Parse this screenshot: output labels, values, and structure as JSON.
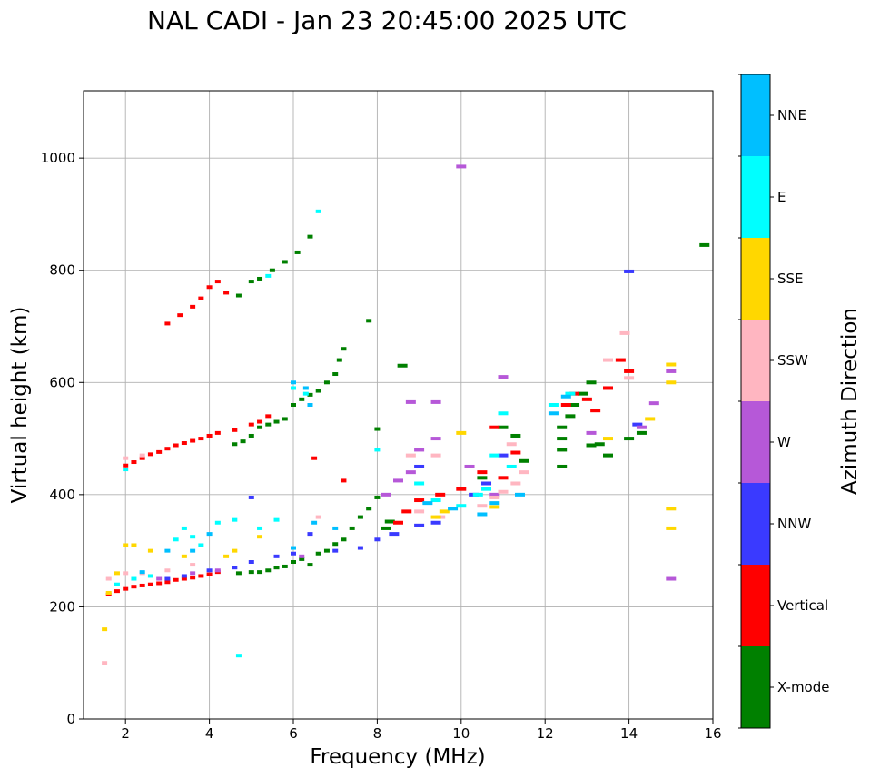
{
  "chart_data": {
    "type": "scatter",
    "title": "NAL CADI - Jan 23 20:45:00 2025 UTC",
    "xlabel": "Frequency (MHz)",
    "ylabel": "Virtual height (km)",
    "xlim": [
      1,
      16
    ],
    "ylim": [
      0,
      1120
    ],
    "xticks": [
      2,
      4,
      6,
      8,
      10,
      12,
      14,
      16
    ],
    "yticks": [
      0,
      200,
      400,
      600,
      800,
      1000
    ],
    "grid": true,
    "colorbar": {
      "label": "Azimuth Direction",
      "categories": [
        "X-mode",
        "Vertical",
        "NNW",
        "W",
        "SSW",
        "SSE",
        "E",
        "NNE"
      ],
      "colors": [
        "#008000",
        "#ff0000",
        "#3a3aff",
        "#b658d8",
        "#ffb6c1",
        "#ffd700",
        "#00ffff",
        "#00bfff"
      ]
    },
    "series": [
      {
        "name": "X-mode",
        "points": [
          [
            4.7,
            260
          ],
          [
            5.0,
            262
          ],
          [
            5.2,
            262
          ],
          [
            5.4,
            265
          ],
          [
            5.6,
            270
          ],
          [
            5.8,
            272
          ],
          [
            6.0,
            280
          ],
          [
            6.2,
            285
          ],
          [
            6.4,
            275
          ],
          [
            6.6,
            295
          ],
          [
            6.8,
            300
          ],
          [
            7.0,
            312
          ],
          [
            7.2,
            320
          ],
          [
            7.4,
            340
          ],
          [
            7.6,
            360
          ],
          [
            7.8,
            375
          ],
          [
            8.0,
            395
          ],
          [
            8.2,
            340
          ],
          [
            8.3,
            352
          ],
          [
            4.6,
            490
          ],
          [
            4.8,
            495
          ],
          [
            5.0,
            505
          ],
          [
            5.2,
            520
          ],
          [
            5.4,
            525
          ],
          [
            5.6,
            530
          ],
          [
            5.8,
            535
          ],
          [
            6.0,
            560
          ],
          [
            6.2,
            570
          ],
          [
            6.4,
            578
          ],
          [
            6.6,
            585
          ],
          [
            6.8,
            600
          ],
          [
            7.0,
            615
          ],
          [
            7.1,
            640
          ],
          [
            7.2,
            660
          ],
          [
            5.0,
            780
          ],
          [
            5.2,
            785
          ],
          [
            5.5,
            800
          ],
          [
            5.8,
            815
          ],
          [
            6.1,
            832
          ],
          [
            6.4,
            860
          ],
          [
            4.7,
            755
          ],
          [
            12.4,
            450
          ],
          [
            12.4,
            480
          ],
          [
            12.4,
            500
          ],
          [
            12.4,
            520
          ],
          [
            12.6,
            540
          ],
          [
            12.9,
            580
          ],
          [
            13.1,
            600
          ],
          [
            13.1,
            488
          ],
          [
            13.3,
            490
          ],
          [
            13.5,
            470
          ],
          [
            12.7,
            560
          ],
          [
            14.0,
            500
          ],
          [
            14.3,
            510
          ],
          [
            15.8,
            845
          ],
          [
            7.8,
            710
          ],
          [
            8.6,
            630
          ],
          [
            8.0,
            517
          ],
          [
            10.5,
            430
          ],
          [
            11.0,
            520
          ],
          [
            11.3,
            505
          ],
          [
            11.5,
            460
          ]
        ]
      },
      {
        "name": "Vertical",
        "points": [
          [
            1.6,
            222
          ],
          [
            1.8,
            228
          ],
          [
            2.0,
            232
          ],
          [
            2.2,
            236
          ],
          [
            2.4,
            238
          ],
          [
            2.6,
            240
          ],
          [
            2.8,
            242
          ],
          [
            3.0,
            244
          ],
          [
            3.2,
            248
          ],
          [
            3.4,
            250
          ],
          [
            3.6,
            252
          ],
          [
            3.8,
            255
          ],
          [
            4.0,
            258
          ],
          [
            4.2,
            262
          ],
          [
            2.0,
            452
          ],
          [
            2.2,
            458
          ],
          [
            2.4,
            465
          ],
          [
            2.6,
            472
          ],
          [
            2.8,
            476
          ],
          [
            3.0,
            482
          ],
          [
            3.2,
            488
          ],
          [
            3.4,
            492
          ],
          [
            3.6,
            496
          ],
          [
            3.8,
            500
          ],
          [
            4.0,
            505
          ],
          [
            4.2,
            510
          ],
          [
            4.6,
            515
          ],
          [
            5.0,
            525
          ],
          [
            5.2,
            530
          ],
          [
            5.4,
            540
          ],
          [
            3.0,
            705
          ],
          [
            3.3,
            720
          ],
          [
            3.6,
            735
          ],
          [
            3.8,
            750
          ],
          [
            4.0,
            770
          ],
          [
            4.2,
            780
          ],
          [
            4.4,
            760
          ],
          [
            8.5,
            350
          ],
          [
            8.7,
            370
          ],
          [
            9.0,
            390
          ],
          [
            9.5,
            400
          ],
          [
            10.0,
            410
          ],
          [
            10.5,
            440
          ],
          [
            11.0,
            430
          ],
          [
            11.3,
            475
          ],
          [
            10.8,
            520
          ],
          [
            12.5,
            560
          ],
          [
            12.7,
            580
          ],
          [
            13.0,
            570
          ],
          [
            13.2,
            550
          ],
          [
            13.5,
            590
          ],
          [
            14.0,
            620
          ],
          [
            13.8,
            640
          ],
          [
            7.2,
            425
          ],
          [
            6.5,
            465
          ]
        ]
      },
      {
        "name": "NNW",
        "points": [
          [
            3.0,
            250
          ],
          [
            3.4,
            255
          ],
          [
            4.0,
            265
          ],
          [
            4.6,
            270
          ],
          [
            5.0,
            280
          ],
          [
            5.6,
            290
          ],
          [
            6.0,
            295
          ],
          [
            6.4,
            330
          ],
          [
            7.0,
            300
          ],
          [
            7.6,
            305
          ],
          [
            8.0,
            320
          ],
          [
            8.4,
            330
          ],
          [
            9.0,
            345
          ],
          [
            9.4,
            350
          ],
          [
            9.0,
            450
          ],
          [
            10.3,
            400
          ],
          [
            10.6,
            420
          ],
          [
            11.0,
            470
          ],
          [
            14.0,
            798
          ],
          [
            5.0,
            395
          ],
          [
            14.2,
            525
          ]
        ]
      },
      {
        "name": "W",
        "points": [
          [
            2.8,
            250
          ],
          [
            3.6,
            260
          ],
          [
            4.2,
            265
          ],
          [
            6.2,
            290
          ],
          [
            8.8,
            440
          ],
          [
            9.0,
            480
          ],
          [
            9.4,
            500
          ],
          [
            10.2,
            450
          ],
          [
            10.8,
            400
          ],
          [
            11.0,
            610
          ],
          [
            13.1,
            510
          ],
          [
            14.3,
            520
          ],
          [
            14.6,
            563
          ],
          [
            15.0,
            250
          ],
          [
            15.0,
            620
          ],
          [
            8.2,
            400
          ],
          [
            8.5,
            425
          ],
          [
            8.8,
            565
          ],
          [
            9.4,
            565
          ],
          [
            10.0,
            985
          ]
        ]
      },
      {
        "name": "SSW",
        "points": [
          [
            1.5,
            100
          ],
          [
            1.6,
            250
          ],
          [
            2.0,
            260
          ],
          [
            2.4,
            260
          ],
          [
            3.0,
            265
          ],
          [
            3.6,
            275
          ],
          [
            2.0,
            465
          ],
          [
            2.4,
            470
          ],
          [
            9.5,
            360
          ],
          [
            10.5,
            380
          ],
          [
            10.8,
            395
          ],
          [
            11.0,
            405
          ],
          [
            11.3,
            420
          ],
          [
            11.5,
            440
          ],
          [
            11.2,
            490
          ],
          [
            13.5,
            640
          ],
          [
            13.9,
            688
          ],
          [
            14.0,
            608
          ],
          [
            8.8,
            470
          ],
          [
            9.4,
            470
          ],
          [
            9.0,
            370
          ],
          [
            6.6,
            360
          ]
        ]
      },
      {
        "name": "SSE",
        "points": [
          [
            1.5,
            160
          ],
          [
            1.6,
            225
          ],
          [
            1.8,
            260
          ],
          [
            2.0,
            310
          ],
          [
            2.2,
            310
          ],
          [
            2.6,
            300
          ],
          [
            3.4,
            290
          ],
          [
            4.4,
            290
          ],
          [
            4.6,
            300
          ],
          [
            9.4,
            360
          ],
          [
            9.6,
            370
          ],
          [
            10.0,
            510
          ],
          [
            10.8,
            378
          ],
          [
            13.5,
            500
          ],
          [
            14.5,
            535
          ],
          [
            15.0,
            632
          ],
          [
            15.0,
            600
          ],
          [
            15.0,
            340
          ],
          [
            15.0,
            375
          ],
          [
            5.2,
            325
          ]
        ]
      },
      {
        "name": "E",
        "points": [
          [
            1.8,
            240
          ],
          [
            2.2,
            250
          ],
          [
            2.6,
            255
          ],
          [
            3.2,
            320
          ],
          [
            3.4,
            340
          ],
          [
            3.6,
            325
          ],
          [
            4.2,
            350
          ],
          [
            4.6,
            355
          ],
          [
            5.2,
            340
          ],
          [
            5.6,
            355
          ],
          [
            3.8,
            310
          ],
          [
            9.0,
            420
          ],
          [
            9.4,
            390
          ],
          [
            10.0,
            380
          ],
          [
            10.4,
            400
          ],
          [
            10.6,
            410
          ],
          [
            10.8,
            470
          ],
          [
            11.2,
            450
          ],
          [
            11.0,
            545
          ],
          [
            12.2,
            560
          ],
          [
            12.6,
            580
          ],
          [
            5.4,
            790
          ],
          [
            6.3,
            580
          ],
          [
            6.6,
            905
          ],
          [
            2.0,
            445
          ],
          [
            8.0,
            480
          ],
          [
            4.7,
            113
          ],
          [
            6.0,
            590
          ]
        ]
      },
      {
        "name": "NNE",
        "points": [
          [
            2.4,
            262
          ],
          [
            3.0,
            300
          ],
          [
            3.6,
            300
          ],
          [
            4.0,
            330
          ],
          [
            6.0,
            305
          ],
          [
            6.5,
            350
          ],
          [
            7.0,
            340
          ],
          [
            9.2,
            385
          ],
          [
            9.8,
            375
          ],
          [
            10.5,
            365
          ],
          [
            10.8,
            385
          ],
          [
            11.4,
            400
          ],
          [
            12.5,
            575
          ],
          [
            12.2,
            545
          ],
          [
            6.0,
            600
          ],
          [
            6.3,
            590
          ],
          [
            6.4,
            560
          ]
        ]
      }
    ]
  }
}
